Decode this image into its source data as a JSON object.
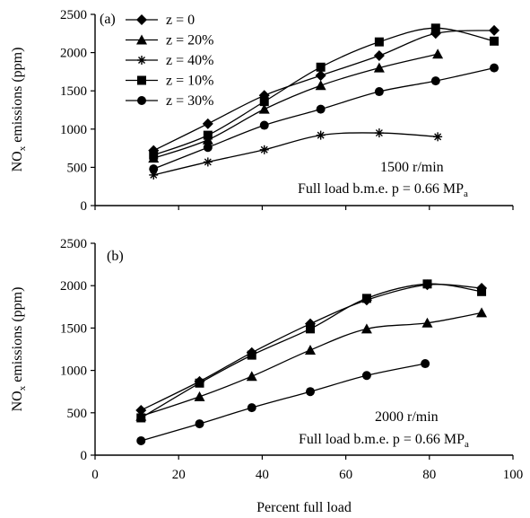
{
  "figure": {
    "xlabel": "Percent full load"
  },
  "chart_data": [
    {
      "type": "line",
      "panel_label": "(a)",
      "ylabel_main": "NO",
      "ylabel_sub": "x",
      "ylabel_rest": " emissions (ppm)",
      "xlim": [
        0,
        100
      ],
      "ylim": [
        0,
        2500
      ],
      "xticks": [],
      "yticks": [
        0,
        500,
        1000,
        1500,
        2000,
        2500
      ],
      "grid": false,
      "legend_position": "top-left",
      "annotation_line1": "1500 r/min",
      "annotation_line2_main": "Full load b.m.e. p = 0.66 MP",
      "annotation_line2_sub": "a",
      "series": [
        {
          "name": "z = 0",
          "marker": "diamond",
          "x": [
            14,
            27,
            40.5,
            54,
            68,
            81.5,
            95.5
          ],
          "y": [
            720,
            1070,
            1440,
            1700,
            1960,
            2250,
            2290
          ]
        },
        {
          "name": "z = 20%",
          "marker": "triangle",
          "x": [
            14,
            27,
            40.5,
            54,
            68,
            82
          ],
          "y": [
            620,
            860,
            1260,
            1570,
            1800,
            1980
          ]
        },
        {
          "name": "z = 40%",
          "marker": "asterisk",
          "x": [
            14,
            27,
            40.5,
            54,
            68,
            82
          ],
          "y": [
            400,
            570,
            730,
            920,
            950,
            900
          ]
        },
        {
          "name": "z = 10%",
          "marker": "square",
          "x": [
            14,
            27,
            40.5,
            54,
            68,
            81.5,
            95.5
          ],
          "y": [
            660,
            920,
            1360,
            1810,
            2140,
            2320,
            2150
          ]
        },
        {
          "name": "z = 30%",
          "marker": "circle",
          "x": [
            14,
            27,
            40.5,
            54,
            68,
            81.5,
            95.5
          ],
          "y": [
            480,
            760,
            1050,
            1260,
            1490,
            1630,
            1800
          ]
        }
      ]
    },
    {
      "type": "line",
      "panel_label": "(b)",
      "ylabel_main": "NO",
      "ylabel_sub": "x",
      "ylabel_rest": " emissions (ppm)",
      "xlim": [
        0,
        100
      ],
      "ylim": [
        0,
        2500
      ],
      "xticks": [
        0,
        20,
        40,
        60,
        80,
        100
      ],
      "yticks": [
        0,
        500,
        1000,
        1500,
        2000,
        2500
      ],
      "grid": false,
      "legend_position": "none",
      "annotation_line1": "2000 r/min",
      "annotation_line2_main": "Full load b.m.e. p = 0.66 MP",
      "annotation_line2_sub": "a",
      "series": [
        {
          "name": "z = 0",
          "marker": "diamond",
          "x": [
            11,
            25,
            37.5,
            51.5,
            65,
            79.5,
            92.5
          ],
          "y": [
            530,
            870,
            1210,
            1550,
            1830,
            2010,
            1970
          ]
        },
        {
          "name": "z = 20%",
          "marker": "triangle",
          "x": [
            11,
            25,
            37.5,
            51.5,
            65,
            79.5,
            92.5
          ],
          "y": [
            460,
            690,
            930,
            1240,
            1490,
            1560,
            1680
          ]
        },
        {
          "name": "z = 10%",
          "marker": "square",
          "x": [
            11,
            25,
            37.5,
            51.5,
            65,
            79.5,
            92.5
          ],
          "y": [
            440,
            850,
            1180,
            1490,
            1850,
            2020,
            1930
          ]
        },
        {
          "name": "z = 30%",
          "marker": "circle",
          "x": [
            11,
            25,
            37.5,
            51.5,
            65,
            79
          ],
          "y": [
            170,
            370,
            560,
            750,
            940,
            1080
          ]
        }
      ]
    }
  ]
}
